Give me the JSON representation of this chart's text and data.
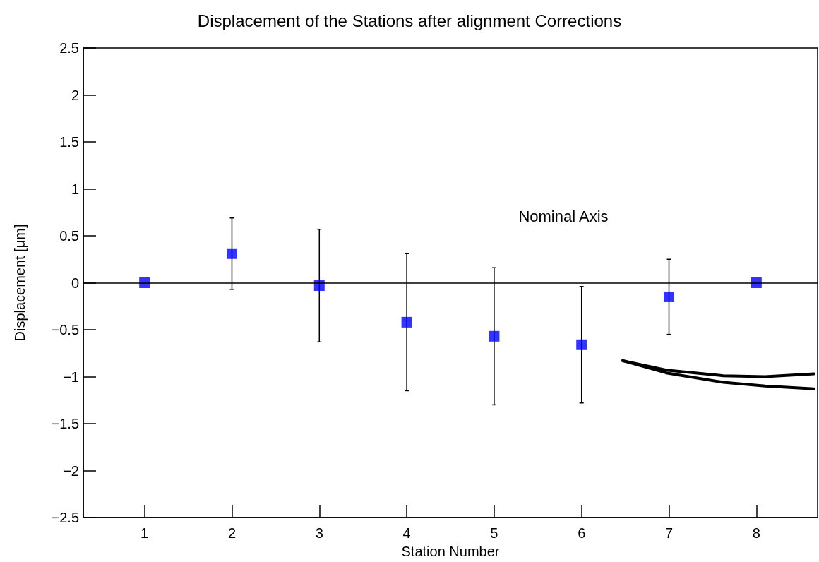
{
  "chart_data": {
    "type": "scatter",
    "title": "Displacement of the Stations after alignment Corrections",
    "xlabel": "Station Number",
    "ylabel": "Displacement [μm]",
    "xlim": [
      0.3,
      8.7
    ],
    "xticks": [
      1,
      2,
      3,
      4,
      5,
      6,
      7,
      8
    ],
    "ylim": [
      -2.5,
      2.5
    ],
    "yticks": [
      {
        "value": -2.5,
        "label": "−2.5"
      },
      {
        "value": -2,
        "label": "−2"
      },
      {
        "value": -1.5,
        "label": "−1.5"
      },
      {
        "value": -1,
        "label": "−1"
      },
      {
        "value": -0.5,
        "label": "−0.5"
      },
      0,
      0.5,
      1,
      1.5,
      2,
      2.5
    ],
    "grid": false,
    "marker": "square",
    "series": [
      {
        "color": "#0000ff",
        "x": [
          1,
          2,
          3,
          4,
          5,
          6,
          7,
          8
        ],
        "values": [
          0,
          0.31,
          -0.03,
          -0.42,
          -0.57,
          -0.66,
          -0.15,
          0
        ],
        "errors": [
          null,
          0.38,
          0.6,
          0.73,
          0.73,
          0.62,
          0.4,
          null
        ]
      },
      {
        "type": "line",
        "marker": "none",
        "color": "#000000",
        "x": [
          6.47,
          6.97,
          7.62,
          8.1,
          8.66
        ],
        "values": [
          -0.83,
          -0.93,
          -0.99,
          -1.0,
          -0.97
        ]
      },
      {
        "type": "line",
        "marker": "none",
        "color": "#000000",
        "x": [
          6.47,
          6.97,
          7.62,
          8.1,
          8.66
        ],
        "values": [
          -0.83,
          -0.96,
          -1.06,
          -1.1,
          -1.13
        ]
      }
    ],
    "ref_lines": [
      {
        "axis": "y",
        "value": 0,
        "color": "#000000",
        "label": "Nominal Axis"
      }
    ]
  }
}
